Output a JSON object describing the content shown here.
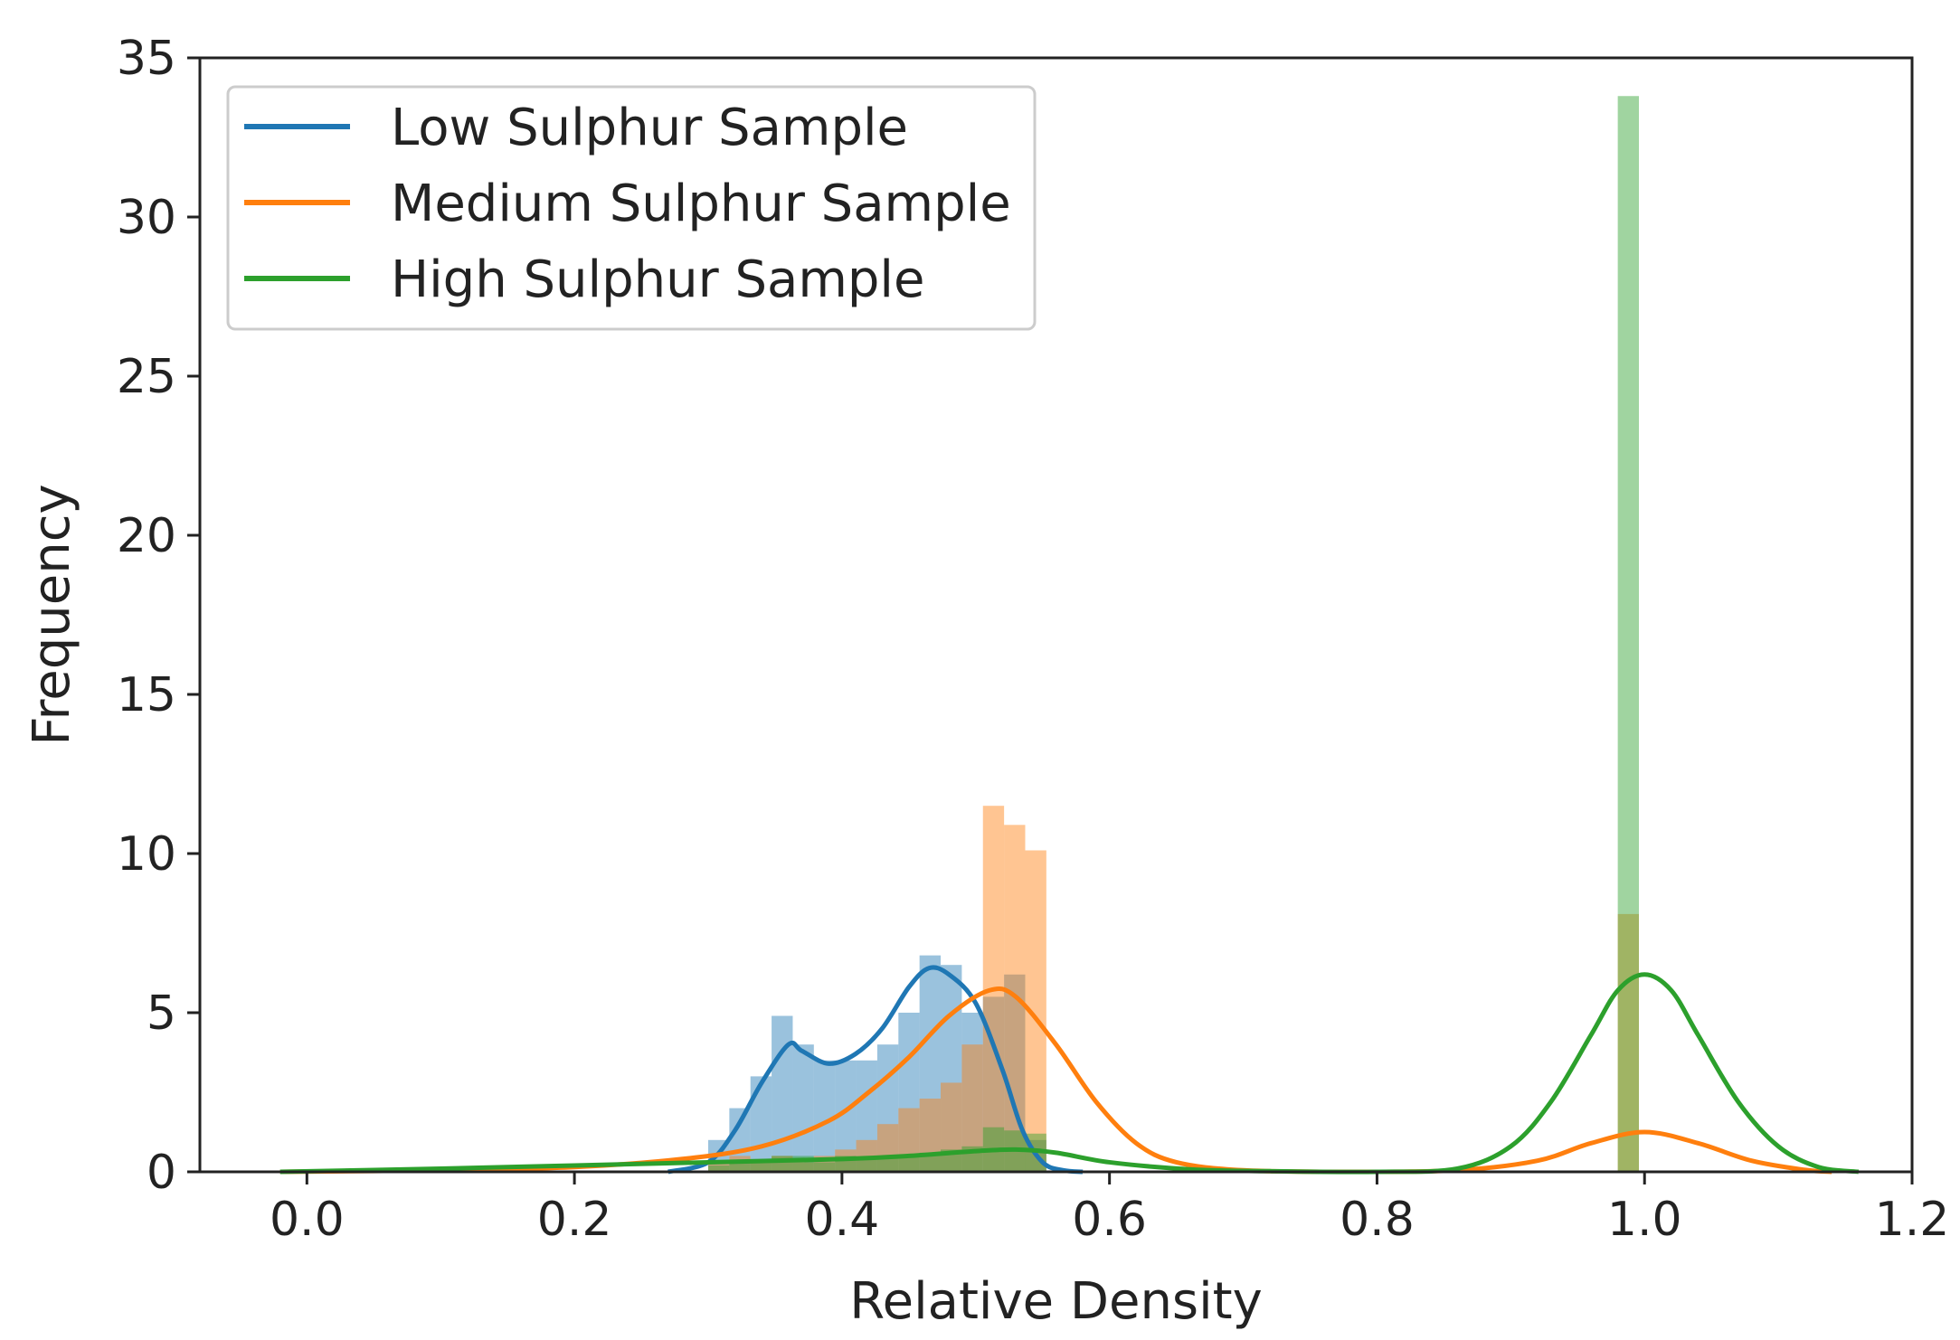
{
  "chart_data": {
    "type": "histogram_kde",
    "title": "",
    "xlabel": "Relative Density",
    "ylabel": "Frequency",
    "xlim": [
      -0.08,
      1.2
    ],
    "ylim": [
      0,
      35
    ],
    "xticks": [
      0.0,
      0.2,
      0.4,
      0.6,
      0.8,
      1.0,
      1.2
    ],
    "xtick_labels": [
      "0.0",
      "0.2",
      "0.4",
      "0.6",
      "0.8",
      "1.0",
      "1.2"
    ],
    "yticks": [
      0,
      5,
      10,
      15,
      20,
      25,
      30,
      35
    ],
    "ytick_labels": [
      "0",
      "5",
      "10",
      "15",
      "20",
      "25",
      "30",
      "35"
    ],
    "grid": false,
    "legend_position": "top-left",
    "series": [
      {
        "name": "Low Sulphur Sample",
        "color": "#1f77b4",
        "hist_bins": [
          {
            "x0": 0.3,
            "x1": 0.3158,
            "h": 1.0
          },
          {
            "x0": 0.3158,
            "x1": 0.3316,
            "h": 2.0
          },
          {
            "x0": 0.3316,
            "x1": 0.3474,
            "h": 3.0
          },
          {
            "x0": 0.3474,
            "x1": 0.3632,
            "h": 4.9
          },
          {
            "x0": 0.3632,
            "x1": 0.379,
            "h": 4.0
          },
          {
            "x0": 0.379,
            "x1": 0.3948,
            "h": 3.5
          },
          {
            "x0": 0.3948,
            "x1": 0.4106,
            "h": 3.5
          },
          {
            "x0": 0.4106,
            "x1": 0.4264,
            "h": 3.5
          },
          {
            "x0": 0.4264,
            "x1": 0.4422,
            "h": 4.0
          },
          {
            "x0": 0.4422,
            "x1": 0.458,
            "h": 5.0
          },
          {
            "x0": 0.458,
            "x1": 0.4738,
            "h": 6.8
          },
          {
            "x0": 0.4738,
            "x1": 0.4896,
            "h": 6.5
          },
          {
            "x0": 0.4896,
            "x1": 0.5054,
            "h": 5.0
          },
          {
            "x0": 0.5054,
            "x1": 0.5212,
            "h": 5.5
          },
          {
            "x0": 0.5212,
            "x1": 0.537,
            "h": 6.2
          },
          {
            "x0": 0.537,
            "x1": 0.5528,
            "h": 1.0
          }
        ],
        "kde_x": [
          0.27,
          0.3,
          0.32,
          0.34,
          0.36,
          0.37,
          0.39,
          0.41,
          0.43,
          0.45,
          0.465,
          0.48,
          0.5,
          0.52,
          0.535,
          0.55,
          0.565,
          0.58
        ],
        "kde_y": [
          0.0,
          0.3,
          1.3,
          2.8,
          4.0,
          3.8,
          3.4,
          3.7,
          4.5,
          5.8,
          6.4,
          6.2,
          5.3,
          3.2,
          1.3,
          0.3,
          0.05,
          0.0
        ]
      },
      {
        "name": "Medium Sulphur Sample",
        "color": "#ff7f0e",
        "hist_bins": [
          {
            "x0": 0.3,
            "x1": 0.3158,
            "h": 0.3
          },
          {
            "x0": 0.3158,
            "x1": 0.3316,
            "h": 0.5
          },
          {
            "x0": 0.3316,
            "x1": 0.3474,
            "h": 0.4
          },
          {
            "x0": 0.3474,
            "x1": 0.3632,
            "h": 0.5
          },
          {
            "x0": 0.3632,
            "x1": 0.379,
            "h": 0.3
          },
          {
            "x0": 0.379,
            "x1": 0.3948,
            "h": 0.5
          },
          {
            "x0": 0.3948,
            "x1": 0.4106,
            "h": 0.7
          },
          {
            "x0": 0.4106,
            "x1": 0.4264,
            "h": 1.0
          },
          {
            "x0": 0.4264,
            "x1": 0.4422,
            "h": 1.5
          },
          {
            "x0": 0.4422,
            "x1": 0.458,
            "h": 2.0
          },
          {
            "x0": 0.458,
            "x1": 0.4738,
            "h": 2.3
          },
          {
            "x0": 0.4738,
            "x1": 0.4896,
            "h": 2.8
          },
          {
            "x0": 0.4896,
            "x1": 0.5054,
            "h": 4.0
          },
          {
            "x0": 0.5054,
            "x1": 0.5212,
            "h": 11.5
          },
          {
            "x0": 0.5212,
            "x1": 0.537,
            "h": 10.9
          },
          {
            "x0": 0.537,
            "x1": 0.5528,
            "h": 10.1
          },
          {
            "x0": 0.98,
            "x1": 0.9958,
            "h": 8.1
          }
        ],
        "kde_x": [
          -0.02,
          0.1,
          0.2,
          0.28,
          0.34,
          0.39,
          0.42,
          0.45,
          0.48,
          0.51,
          0.53,
          0.56,
          0.59,
          0.62,
          0.65,
          0.7,
          0.78,
          0.86,
          0.92,
          0.96,
          1.0,
          1.04,
          1.08,
          1.12,
          1.14
        ],
        "kde_y": [
          0.0,
          0.05,
          0.15,
          0.4,
          0.8,
          1.6,
          2.5,
          3.6,
          4.9,
          5.7,
          5.5,
          4.0,
          2.2,
          0.9,
          0.3,
          0.05,
          0.0,
          0.05,
          0.35,
          0.9,
          1.25,
          0.9,
          0.35,
          0.06,
          0.0
        ]
      },
      {
        "name": "High Sulphur Sample",
        "color": "#2ca02c",
        "hist_bins": [
          {
            "x0": 0.3,
            "x1": 0.3158,
            "h": 0.2
          },
          {
            "x0": 0.3158,
            "x1": 0.3316,
            "h": 0.3
          },
          {
            "x0": 0.3316,
            "x1": 0.3474,
            "h": 0.4
          },
          {
            "x0": 0.3474,
            "x1": 0.3632,
            "h": 0.5
          },
          {
            "x0": 0.3632,
            "x1": 0.379,
            "h": 0.5
          },
          {
            "x0": 0.379,
            "x1": 0.3948,
            "h": 0.3
          },
          {
            "x0": 0.3948,
            "x1": 0.4106,
            "h": 0.5
          },
          {
            "x0": 0.4106,
            "x1": 0.4264,
            "h": 0.4
          },
          {
            "x0": 0.4264,
            "x1": 0.4422,
            "h": 0.5
          },
          {
            "x0": 0.4422,
            "x1": 0.458,
            "h": 0.5
          },
          {
            "x0": 0.458,
            "x1": 0.4738,
            "h": 0.6
          },
          {
            "x0": 0.4738,
            "x1": 0.4896,
            "h": 0.7
          },
          {
            "x0": 0.4896,
            "x1": 0.5054,
            "h": 0.8
          },
          {
            "x0": 0.5054,
            "x1": 0.5212,
            "h": 1.4
          },
          {
            "x0": 0.5212,
            "x1": 0.537,
            "h": 1.3
          },
          {
            "x0": 0.537,
            "x1": 0.5528,
            "h": 1.2
          },
          {
            "x0": 0.98,
            "x1": 0.9958,
            "h": 33.8
          }
        ],
        "kde_x": [
          -0.02,
          0.1,
          0.2,
          0.3,
          0.4,
          0.45,
          0.5,
          0.53,
          0.56,
          0.6,
          0.66,
          0.72,
          0.8,
          0.86,
          0.9,
          0.93,
          0.96,
          0.98,
          1.0,
          1.02,
          1.04,
          1.07,
          1.1,
          1.13,
          1.16
        ],
        "kde_y": [
          0.0,
          0.1,
          0.2,
          0.3,
          0.4,
          0.5,
          0.65,
          0.7,
          0.6,
          0.3,
          0.08,
          0.02,
          0.0,
          0.1,
          0.8,
          2.2,
          4.3,
          5.7,
          6.2,
          5.7,
          4.3,
          2.2,
          0.8,
          0.15,
          0.0
        ]
      }
    ]
  }
}
